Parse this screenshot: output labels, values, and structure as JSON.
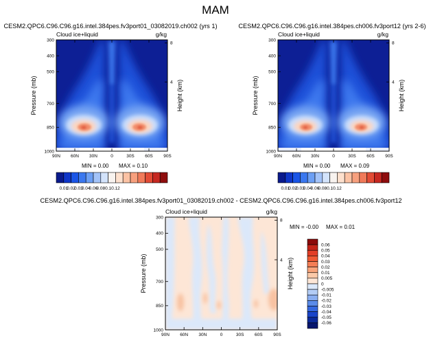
{
  "page_title": "MAM",
  "colors": {
    "frame": "#000000",
    "bottom_strip": "#ffffff"
  },
  "chart_data": [
    {
      "type": "heatmap",
      "id": "top-left",
      "title": "CESM2.QPC6.C96.C96.g16.intel.384pes.fv3port01_03082019.ch002 (yrs 1)",
      "left_label": "Cloud ice+liquid",
      "right_label": "g/kg",
      "xlabel": "",
      "ylabel": "Pressure (mb)",
      "ylabel_right": "Height (km)",
      "x_ticks": [
        "90N",
        "60N",
        "30N",
        "0",
        "30S",
        "60S",
        "90S"
      ],
      "y_ticks": [
        300,
        400,
        500,
        700,
        850,
        1000
      ],
      "y_right_ticks": [
        8,
        4
      ],
      "ylim": [
        1000,
        300
      ],
      "min_label": "MIN =  0.00",
      "max_label": "MAX =  0.10"
    },
    {
      "type": "heatmap",
      "id": "top-right",
      "title": "CESM2.QPC6.C96.C96.g16.intel.384pes.ch006.fv3port12 (yrs 2-6)",
      "left_label": "Cloud ice+liquid",
      "right_label": "g/kg",
      "xlabel": "",
      "ylabel": "Pressure (mb)",
      "ylabel_right": "Height (km)",
      "x_ticks": [
        "90N",
        "60N",
        "30N",
        "0",
        "30S",
        "60S",
        "90S"
      ],
      "y_ticks": [
        300,
        400,
        500,
        700,
        850,
        1000
      ],
      "y_right_ticks": [
        8,
        4
      ],
      "ylim": [
        1000,
        300
      ],
      "min_label": "MIN =  0.00",
      "max_label": "MAX =  0.09"
    },
    {
      "type": "heatmap",
      "id": "difference",
      "title": "CESM2.QPC6.C96.C96.g16.intel.384pes.fv3port01_03082019.ch002 - CESM2.QPC6.C96.C96.g16.intel.384pes.ch006.fv3port12",
      "left_label": "Cloud ice+liquid",
      "right_label": "g/kg",
      "xlabel": "",
      "ylabel": "Pressure (mb)",
      "ylabel_right": "Height (km)",
      "x_ticks": [
        "90N",
        "60N",
        "30N",
        "0",
        "30S",
        "60S",
        "90S"
      ],
      "y_ticks": [
        300,
        400,
        500,
        700,
        850,
        1000
      ],
      "y_right_ticks": [
        8,
        4
      ],
      "ylim": [
        1000,
        300
      ],
      "min_label": "MIN = -0.00",
      "max_label": "MAX =  0.01"
    }
  ],
  "colorbar_top": {
    "labels": [
      "0.01",
      "0.02",
      "0.03",
      "0.04",
      "0.06",
      "0.08",
      "0.1",
      "0.12"
    ],
    "colors": [
      "#0a1a8c",
      "#0f36c8",
      "#1a55e6",
      "#3b78ef",
      "#6c9ff4",
      "#a3c3f8",
      "#d3e3fb",
      "#f8f3ef",
      "#fde0cd",
      "#fbc2a4",
      "#f7a07e",
      "#f07a5a",
      "#e24b35",
      "#c62821",
      "#8e0d0d"
    ]
  },
  "colorbar_diff": {
    "labels": [
      "0.06",
      "0.05",
      "0.04",
      "0.03",
      "0.02",
      "0.01",
      "0.005",
      "0",
      "-0.005",
      "-0.01",
      "-0.02",
      "-0.03",
      "-0.04",
      "-0.05",
      "-0.06"
    ],
    "colors": [
      "#8b0a0a",
      "#c42318",
      "#e23e26",
      "#f05a34",
      "#f47e55",
      "#f8a47b",
      "#fbc9a8",
      "#fde6d6",
      "#dbe8fa",
      "#b4cdf5",
      "#8aaef0",
      "#5b8ce9",
      "#3568df",
      "#1a45c9",
      "#0c2a9a",
      "#07166e"
    ]
  }
}
